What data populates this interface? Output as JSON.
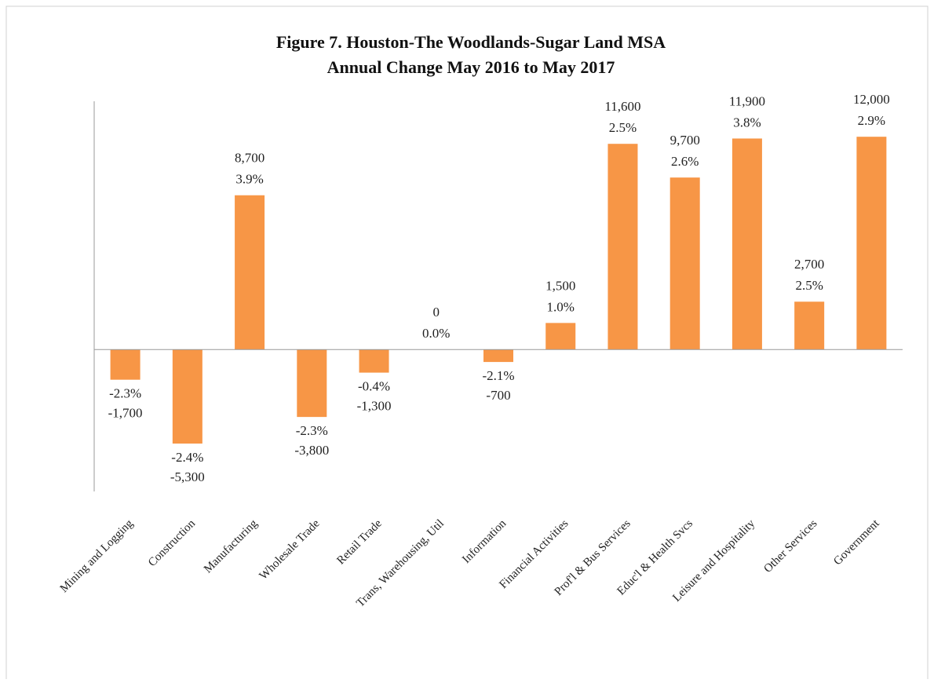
{
  "chart_data": {
    "type": "bar",
    "title": "Figure 7. Houston-The Woodlands-Sugar Land MSA",
    "subtitle": "Annual Change May 2016 to May 2017",
    "categories": [
      "Mining and Logging",
      "Construction",
      "Manufacturing",
      "Wholesale Trade",
      "Retail Trade",
      "Trans, Warehousing, Util",
      "Information",
      "Financial Activities",
      "Prof'l & Bus Services",
      "Educ'l & Health Svcs",
      "Leisure and Hospitality",
      "Other Services",
      "Government"
    ],
    "values": [
      -1700,
      -5300,
      8700,
      -3800,
      -1300,
      0,
      -700,
      1500,
      11600,
      9700,
      11900,
      2700,
      12000
    ],
    "value_labels": [
      "-1,700",
      "-5,300",
      "8,700",
      "-3,800",
      "-1,300",
      "0",
      "-700",
      "1,500",
      "11,600",
      "9,700",
      "11,900",
      "2,700",
      "12,000"
    ],
    "percent_labels": [
      "-2.3%",
      "-2.4%",
      "3.9%",
      "-2.3%",
      "-0.4%",
      "0.0%",
      "-2.1%",
      "1.0%",
      "2.5%",
      "2.6%",
      "3.8%",
      "2.5%",
      "2.9%"
    ],
    "color": "#f79646",
    "ylim": [
      -8000,
      14000
    ]
  }
}
